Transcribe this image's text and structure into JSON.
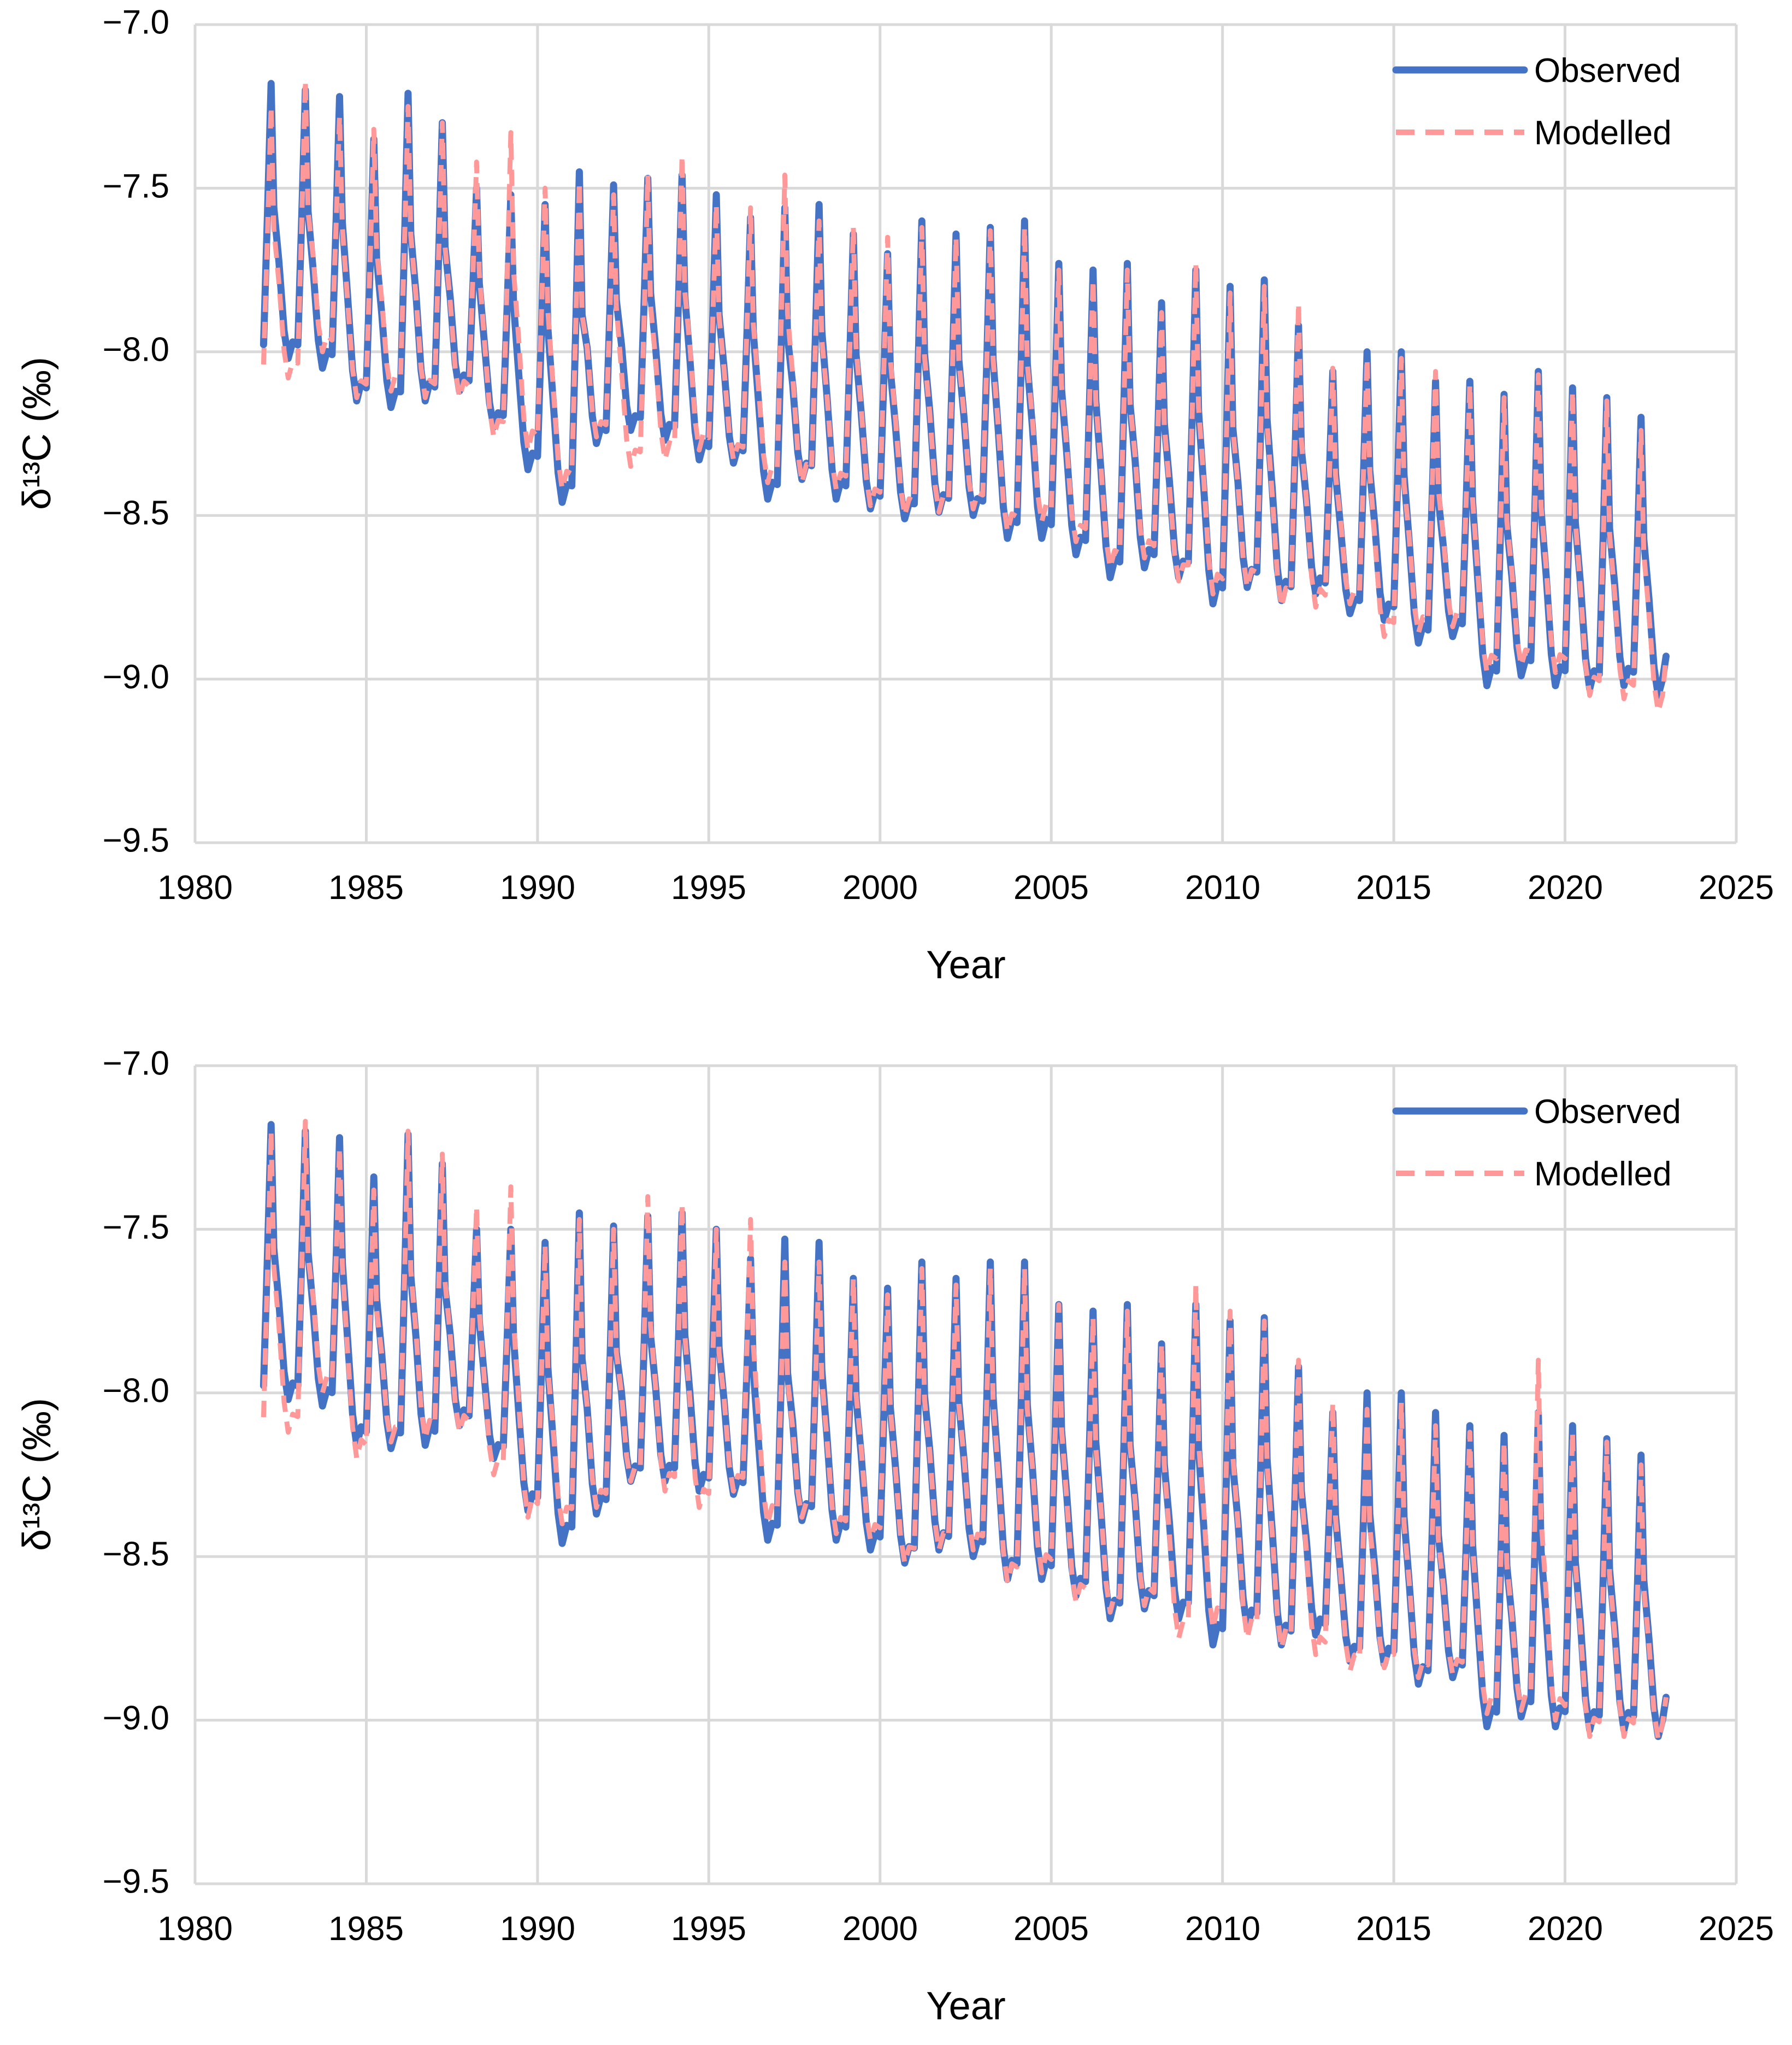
{
  "chart_data": [
    {
      "type": "line",
      "panel": "top",
      "xlabel": "Year",
      "ylabel": "δ¹³C (‰)",
      "xlim": [
        1980,
        2025
      ],
      "ylim": [
        -9.5,
        -7.0
      ],
      "xticks": [
        "1980",
        "1985",
        "1990",
        "1995",
        "2000",
        "2005",
        "2010",
        "2015",
        "2020",
        "2025"
      ],
      "yticks": [
        "−7.0",
        "−7.5",
        "−8.0",
        "−8.5",
        "−9.0",
        "−9.5"
      ],
      "grid": true,
      "legend_position": "top-right",
      "series": [
        {
          "name": "Observed",
          "style": "solid",
          "color": "#4472c4"
        },
        {
          "name": "Modelled",
          "style": "dashed",
          "color": "#ff9999"
        }
      ],
      "annual_extrema": {
        "years": [
          1982,
          1983,
          1984,
          1985,
          1986,
          1987,
          1988,
          1989,
          1990,
          1991,
          1992,
          1993,
          1994,
          1995,
          1996,
          1997,
          1998,
          1999,
          2000,
          2001,
          2002,
          2003,
          2004,
          2005,
          2006,
          2007,
          2008,
          2009,
          2010,
          2011,
          2012,
          2013,
          2014,
          2015,
          2016,
          2017,
          2018,
          2019,
          2020,
          2021,
          2022
        ],
        "observed_max": [
          -7.18,
          -7.2,
          -7.22,
          -7.35,
          -7.21,
          -7.3,
          -7.5,
          -7.52,
          -7.55,
          -7.45,
          -7.49,
          -7.47,
          -7.46,
          -7.52,
          -7.59,
          -7.56,
          -7.55,
          -7.64,
          -7.7,
          -7.6,
          -7.64,
          -7.62,
          -7.6,
          -7.73,
          -7.75,
          -7.73,
          -7.85,
          -7.75,
          -7.8,
          -7.78,
          -7.92,
          -8.06,
          -8.0,
          -8.0,
          -8.09,
          -8.09,
          -8.13,
          -8.06,
          -8.11,
          -8.14,
          -8.2
        ],
        "observed_min": [
          -8.02,
          -8.05,
          -8.15,
          -8.17,
          -8.15,
          -8.12,
          -8.23,
          -8.36,
          -8.46,
          -8.28,
          -8.24,
          -8.27,
          -8.33,
          -8.34,
          -8.45,
          -8.39,
          -8.45,
          -8.48,
          -8.51,
          -8.49,
          -8.5,
          -8.57,
          -8.57,
          -8.62,
          -8.69,
          -8.66,
          -8.69,
          -8.77,
          -8.72,
          -8.76,
          -8.74,
          -8.8,
          -8.82,
          -8.89,
          -8.87,
          -9.02,
          -8.99,
          -9.02,
          -9.03,
          -9.02,
          -9.05
        ],
        "modelled_max": [
          -7.25,
          -7.17,
          -7.28,
          -7.32,
          -7.25,
          -7.3,
          -7.42,
          -7.33,
          -7.5,
          -7.48,
          -7.52,
          -7.46,
          -7.4,
          -7.55,
          -7.56,
          -7.46,
          -7.6,
          -7.62,
          -7.65,
          -7.62,
          -7.65,
          -7.63,
          -7.62,
          -7.75,
          -7.78,
          -7.75,
          -7.88,
          -7.73,
          -7.82,
          -7.8,
          -7.85,
          -8.05,
          -8.02,
          -8.02,
          -8.06,
          -8.1,
          -8.14,
          -8.07,
          -8.12,
          -8.15,
          -8.24
        ],
        "modelled_min": [
          -8.08,
          -8.0,
          -8.14,
          -8.12,
          -8.14,
          -8.14,
          -8.26,
          -8.3,
          -8.42,
          -8.26,
          -8.35,
          -8.33,
          -8.3,
          -8.33,
          -8.4,
          -8.4,
          -8.42,
          -8.47,
          -8.5,
          -8.49,
          -8.48,
          -8.55,
          -8.52,
          -8.58,
          -8.66,
          -8.63,
          -8.7,
          -8.74,
          -8.72,
          -8.78,
          -8.78,
          -8.77,
          -8.87,
          -8.86,
          -8.84,
          -8.98,
          -8.96,
          -8.98,
          -9.05,
          -9.06,
          -9.1
        ]
      },
      "first_year": 1982.0,
      "last_year": 2022.95,
      "last_observed": -8.93,
      "last_modelled": -8.93
    },
    {
      "type": "line",
      "panel": "bottom",
      "xlabel": "Year",
      "ylabel": "δ¹³C (‰)",
      "xlim": [
        1980,
        2025
      ],
      "ylim": [
        -9.5,
        -7.0
      ],
      "xticks": [
        "1980",
        "1985",
        "1990",
        "1995",
        "2000",
        "2005",
        "2010",
        "2015",
        "2020",
        "2025"
      ],
      "yticks": [
        "−7.0",
        "−7.5",
        "−8.0",
        "−8.5",
        "−9.0",
        "−9.5"
      ],
      "grid": true,
      "legend_position": "top-right",
      "series": [
        {
          "name": "Observed",
          "style": "solid",
          "color": "#4472c4"
        },
        {
          "name": "Modelled",
          "style": "dashed",
          "color": "#ff9999"
        }
      ],
      "annual_extrema": {
        "years": [
          1982,
          1983,
          1984,
          1985,
          1986,
          1987,
          1988,
          1989,
          1990,
          1991,
          1992,
          1993,
          1994,
          1995,
          1996,
          1997,
          1998,
          1999,
          2000,
          2001,
          2002,
          2003,
          2004,
          2005,
          2006,
          2007,
          2008,
          2009,
          2010,
          2011,
          2012,
          2013,
          2014,
          2015,
          2016,
          2017,
          2018,
          2019,
          2020,
          2021,
          2022
        ],
        "observed_max": [
          -7.18,
          -7.2,
          -7.22,
          -7.34,
          -7.21,
          -7.3,
          -7.5,
          -7.5,
          -7.54,
          -7.45,
          -7.49,
          -7.46,
          -7.45,
          -7.5,
          -7.59,
          -7.53,
          -7.54,
          -7.65,
          -7.68,
          -7.6,
          -7.65,
          -7.6,
          -7.6,
          -7.73,
          -7.75,
          -7.73,
          -7.85,
          -7.73,
          -7.78,
          -7.77,
          -7.92,
          -8.06,
          -8.0,
          -8.0,
          -8.06,
          -8.1,
          -8.13,
          -8.06,
          -8.1,
          -8.14,
          -8.19
        ],
        "observed_min": [
          -8.02,
          -8.04,
          -8.16,
          -8.17,
          -8.16,
          -8.1,
          -8.2,
          -8.36,
          -8.46,
          -8.37,
          -8.27,
          -8.27,
          -8.3,
          -8.31,
          -8.45,
          -8.39,
          -8.45,
          -8.48,
          -8.52,
          -8.48,
          -8.5,
          -8.57,
          -8.57,
          -8.62,
          -8.69,
          -8.66,
          -8.69,
          -8.77,
          -8.72,
          -8.77,
          -8.74,
          -8.82,
          -8.83,
          -8.89,
          -8.87,
          -9.02,
          -8.99,
          -9.02,
          -9.03,
          -9.03,
          -9.05
        ],
        "modelled_max": [
          -7.2,
          -7.17,
          -7.25,
          -7.38,
          -7.2,
          -7.27,
          -7.43,
          -7.37,
          -7.55,
          -7.47,
          -7.5,
          -7.4,
          -7.42,
          -7.5,
          -7.47,
          -7.6,
          -7.6,
          -7.65,
          -7.7,
          -7.62,
          -7.67,
          -7.62,
          -7.62,
          -7.73,
          -7.77,
          -7.75,
          -7.85,
          -7.67,
          -7.75,
          -7.78,
          -7.9,
          -8.03,
          -8.05,
          -8.03,
          -8.1,
          -8.12,
          -8.15,
          -7.9,
          -8.12,
          -8.15,
          -8.22
        ],
        "modelled_min": [
          -8.12,
          -8.0,
          -8.2,
          -8.15,
          -8.14,
          -8.12,
          -8.25,
          -8.38,
          -8.4,
          -8.35,
          -8.27,
          -8.3,
          -8.35,
          -8.3,
          -8.4,
          -8.38,
          -8.43,
          -8.45,
          -8.52,
          -8.48,
          -8.48,
          -8.58,
          -8.55,
          -8.64,
          -8.67,
          -8.65,
          -8.75,
          -8.72,
          -8.75,
          -8.78,
          -8.8,
          -8.85,
          -8.84,
          -8.87,
          -8.86,
          -8.98,
          -8.97,
          -9.0,
          -9.05,
          -9.05,
          -9.06
        ]
      },
      "first_year": 1982.0,
      "last_year": 2022.95,
      "last_observed": -8.93,
      "last_modelled": -8.93
    }
  ]
}
